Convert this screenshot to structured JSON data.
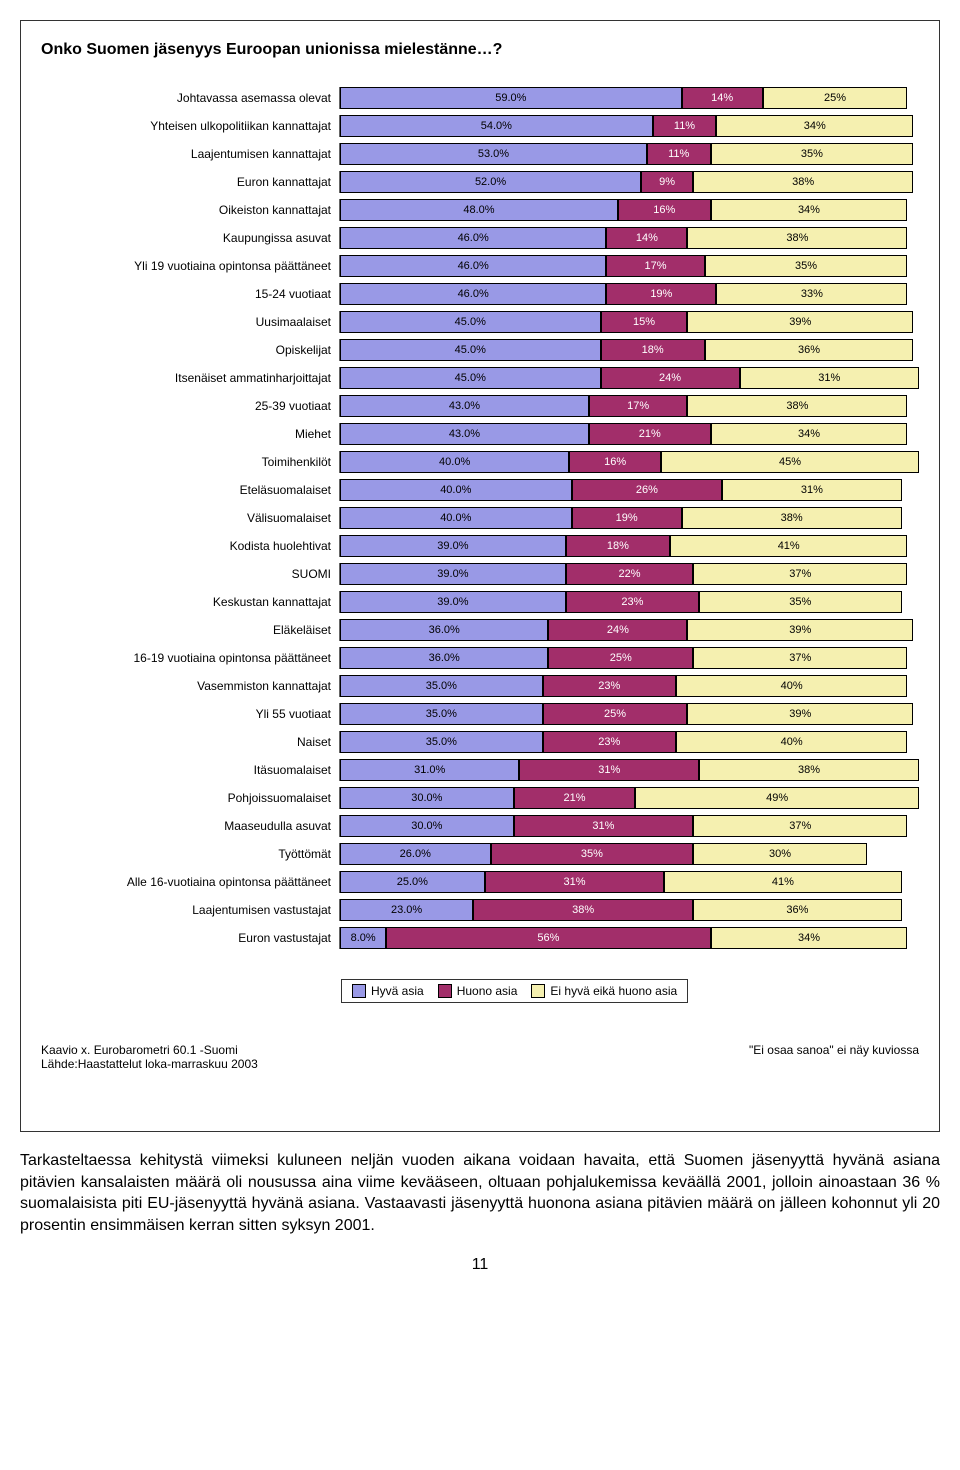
{
  "chart": {
    "type": "stacked-horizontal-bar",
    "title": "Onko Suomen jäsenyys Euroopan unionissa mielestänne…?",
    "xlim": [
      0,
      100
    ],
    "colors": {
      "good": "#9999e6",
      "bad": "#a22e6a",
      "neither": "#f5f0b0",
      "border": "#000000",
      "text_on_dark": "#ffffff",
      "text_on_light": "#000000"
    },
    "legend": {
      "good": "Hyvä asia",
      "bad": "Huono asia",
      "neither": "Ei hyvä eikä huono asia"
    },
    "rows": [
      {
        "label": "Johtavassa asemassa olevat",
        "good": 59.0,
        "bad": 14,
        "neither": 25
      },
      {
        "label": "Yhteisen ulkopolitiikan kannattajat",
        "good": 54.0,
        "bad": 11,
        "neither": 34
      },
      {
        "label": "Laajentumisen kannattajat",
        "good": 53.0,
        "bad": 11,
        "neither": 35
      },
      {
        "label": "Euron kannattajat",
        "good": 52.0,
        "bad": 9,
        "neither": 38
      },
      {
        "label": "Oikeiston kannattajat",
        "good": 48.0,
        "bad": 16,
        "neither": 34
      },
      {
        "label": "Kaupungissa asuvat",
        "good": 46.0,
        "bad": 14,
        "neither": 38
      },
      {
        "label": "Yli 19 vuotiaina opintonsa päättäneet",
        "good": 46.0,
        "bad": 17,
        "neither": 35
      },
      {
        "label": "15-24 vuotiaat",
        "good": 46.0,
        "bad": 19,
        "neither": 33
      },
      {
        "label": "Uusimaalaiset",
        "good": 45.0,
        "bad": 15,
        "neither": 39
      },
      {
        "label": "Opiskelijat",
        "good": 45.0,
        "bad": 18,
        "neither": 36
      },
      {
        "label": "Itsenäiset ammatinharjoittajat",
        "good": 45.0,
        "bad": 24,
        "neither": 31
      },
      {
        "label": "25-39 vuotiaat",
        "good": 43.0,
        "bad": 17,
        "neither": 38
      },
      {
        "label": "Miehet",
        "good": 43.0,
        "bad": 21,
        "neither": 34
      },
      {
        "label": "Toimihenkilöt",
        "good": 40.0,
        "bad": 16,
        "neither": 45
      },
      {
        "label": "Eteläsuomalaiset",
        "good": 40.0,
        "bad": 26,
        "neither": 31
      },
      {
        "label": "Välisuomalaiset",
        "good": 40.0,
        "bad": 19,
        "neither": 38
      },
      {
        "label": "Kodista huolehtivat",
        "good": 39.0,
        "bad": 18,
        "neither": 41
      },
      {
        "label": "SUOMI",
        "good": 39.0,
        "bad": 22,
        "neither": 37
      },
      {
        "label": "Keskustan kannattajat",
        "good": 39.0,
        "bad": 23,
        "neither": 35
      },
      {
        "label": "Eläkeläiset",
        "good": 36.0,
        "bad": 24,
        "neither": 39
      },
      {
        "label": "16-19 vuotiaina opintonsa päättäneet",
        "good": 36.0,
        "bad": 25,
        "neither": 37
      },
      {
        "label": "Vasemmiston kannattajat",
        "good": 35.0,
        "bad": 23,
        "neither": 40
      },
      {
        "label": "Yli 55 vuotiaat",
        "good": 35.0,
        "bad": 25,
        "neither": 39
      },
      {
        "label": "Naiset",
        "good": 35.0,
        "bad": 23,
        "neither": 40
      },
      {
        "label": "Itäsuomalaiset",
        "good": 31.0,
        "bad": 31,
        "neither": 38
      },
      {
        "label": "Pohjoissuomalaiset",
        "good": 30.0,
        "bad": 21,
        "neither": 49
      },
      {
        "label": "Maaseudulla asuvat",
        "good": 30.0,
        "bad": 31,
        "neither": 37
      },
      {
        "label": "Työttömät",
        "good": 26.0,
        "bad": 35,
        "neither": 30
      },
      {
        "label": "Alle 16-vuotiaina opintonsa päättäneet",
        "good": 25.0,
        "bad": 31,
        "neither": 41
      },
      {
        "label": "Laajentumisen vastustajat",
        "good": 23.0,
        "bad": 38,
        "neither": 36
      },
      {
        "label": "Euron vastustajat",
        "good": 8.0,
        "bad": 56,
        "neither": 34
      }
    ],
    "good_label_format": "pct1",
    "other_label_format": "pct0",
    "footer_left_line1": "Kaavio x. Eurobarometri 60.1 -Suomi",
    "footer_left_line2": "Lähde:Haastattelut loka-marraskuu 2003",
    "footer_right": "\"Ei osaa sanoa\" ei näy kuviossa"
  },
  "body_text": "Tarkasteltaessa kehitystä viimeksi kuluneen neljän vuoden aikana voidaan havaita, että Suomen jäsenyyttä hyvänä asiana pitävien kansalaisten määrä oli nousussa aina viime kevääseen, oltuaan pohjalukemissa keväällä 2001, jolloin ainoastaan 36 % suomalaisista piti EU-jäsenyyttä hyvänä asiana. Vastaavasti jäsenyyttä huonona asiana pitävien määrä on jälleen kohonnut yli 20 prosentin ensimmäisen kerran sitten syksyn 2001.",
  "page_number": "11"
}
